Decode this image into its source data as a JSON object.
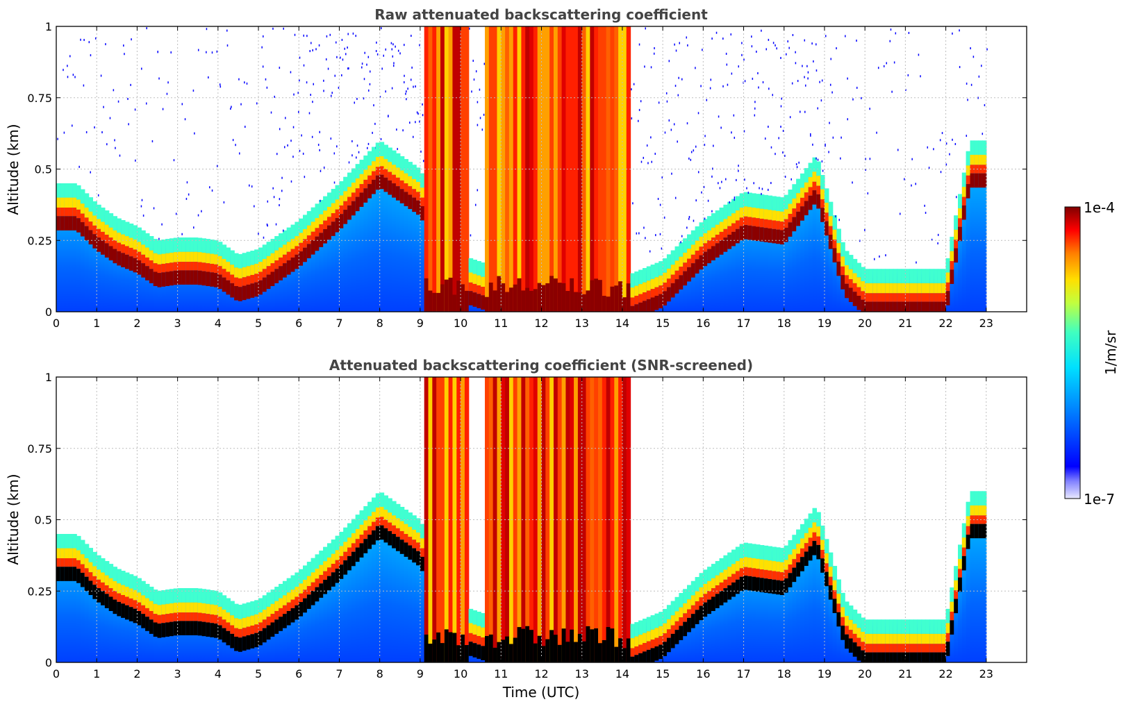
{
  "chart_data": [
    {
      "type": "heatmap",
      "title": "Raw attenuated backscattering coefficient",
      "xlabel": "",
      "ylabel": "Altitude (km)",
      "xlim": [
        0,
        24
      ],
      "ylim": [
        0,
        1
      ],
      "xticks": [
        "0",
        "1",
        "2",
        "3",
        "4",
        "5",
        "6",
        "7",
        "8",
        "9",
        "10",
        "11",
        "12",
        "13",
        "14",
        "15",
        "16",
        "17",
        "18",
        "19",
        "20",
        "21",
        "22",
        "23"
      ],
      "yticks": [
        "0",
        "0.25",
        "0.5",
        "0.75",
        "1"
      ],
      "grid": true,
      "colormap": "jet",
      "color_scale": "log",
      "data_extent_hours": [
        0,
        23
      ],
      "layer_top_km": [
        [
          0,
          0.45
        ],
        [
          0.5,
          0.45
        ],
        [
          1,
          0.38
        ],
        [
          1.5,
          0.33
        ],
        [
          2,
          0.3
        ],
        [
          2.5,
          0.25
        ],
        [
          3,
          0.26
        ],
        [
          3.5,
          0.26
        ],
        [
          4,
          0.25
        ],
        [
          4.5,
          0.2
        ],
        [
          5,
          0.22
        ],
        [
          6,
          0.32
        ],
        [
          7,
          0.45
        ],
        [
          8,
          0.6
        ],
        [
          9,
          0.5
        ],
        [
          10,
          0.2
        ],
        [
          11,
          0.15
        ],
        [
          12,
          0.12
        ],
        [
          13,
          0.12
        ],
        [
          14,
          0.12
        ],
        [
          15,
          0.18
        ],
        [
          16,
          0.32
        ],
        [
          17,
          0.42
        ],
        [
          18,
          0.4
        ],
        [
          18.8,
          0.55
        ],
        [
          19.5,
          0.22
        ],
        [
          20,
          0.15
        ],
        [
          21,
          0.15
        ],
        [
          22,
          0.15
        ],
        [
          22.6,
          0.6
        ],
        [
          23,
          0.6
        ]
      ]
    },
    {
      "type": "heatmap",
      "title": "Attenuated backscattering coefficient (SNR-screened)",
      "xlabel": "Time (UTC)",
      "ylabel": "Altitude (km)",
      "xlim": [
        0,
        24
      ],
      "ylim": [
        0,
        1
      ],
      "xticks": [
        "0",
        "1",
        "2",
        "3",
        "4",
        "5",
        "6",
        "7",
        "8",
        "9",
        "10",
        "11",
        "12",
        "13",
        "14",
        "15",
        "16",
        "17",
        "18",
        "19",
        "20",
        "21",
        "22",
        "23"
      ],
      "yticks": [
        "0",
        "0.25",
        "0.5",
        "0.75",
        "1"
      ],
      "grid": true,
      "colormap": "jet",
      "color_scale": "log",
      "data_extent_hours": [
        0,
        23
      ],
      "layer_top_km": [
        [
          0,
          0.45
        ],
        [
          0.5,
          0.45
        ],
        [
          1,
          0.38
        ],
        [
          1.5,
          0.33
        ],
        [
          2,
          0.3
        ],
        [
          2.5,
          0.25
        ],
        [
          3,
          0.26
        ],
        [
          3.5,
          0.26
        ],
        [
          4,
          0.25
        ],
        [
          4.5,
          0.2
        ],
        [
          5,
          0.22
        ],
        [
          6,
          0.32
        ],
        [
          7,
          0.45
        ],
        [
          8,
          0.6
        ],
        [
          9,
          0.5
        ],
        [
          10,
          0.2
        ],
        [
          11,
          0.15
        ],
        [
          12,
          0.12
        ],
        [
          13,
          0.12
        ],
        [
          14,
          0.12
        ],
        [
          15,
          0.18
        ],
        [
          16,
          0.32
        ],
        [
          17,
          0.42
        ],
        [
          18,
          0.4
        ],
        [
          18.8,
          0.55
        ],
        [
          19.5,
          0.22
        ],
        [
          20,
          0.15
        ],
        [
          21,
          0.15
        ],
        [
          22,
          0.15
        ],
        [
          22.6,
          0.6
        ],
        [
          23,
          0.6
        ]
      ]
    }
  ],
  "colorbar": {
    "label": "1/m/sr",
    "max_label": "1e-4",
    "min_label": "1e-7",
    "colors": [
      "#e8e8ff",
      "#0000ff",
      "#0080ff",
      "#00e0ff",
      "#40ffc0",
      "#c0ff40",
      "#ffe000",
      "#ff8000",
      "#ff0000",
      "#800000"
    ]
  }
}
